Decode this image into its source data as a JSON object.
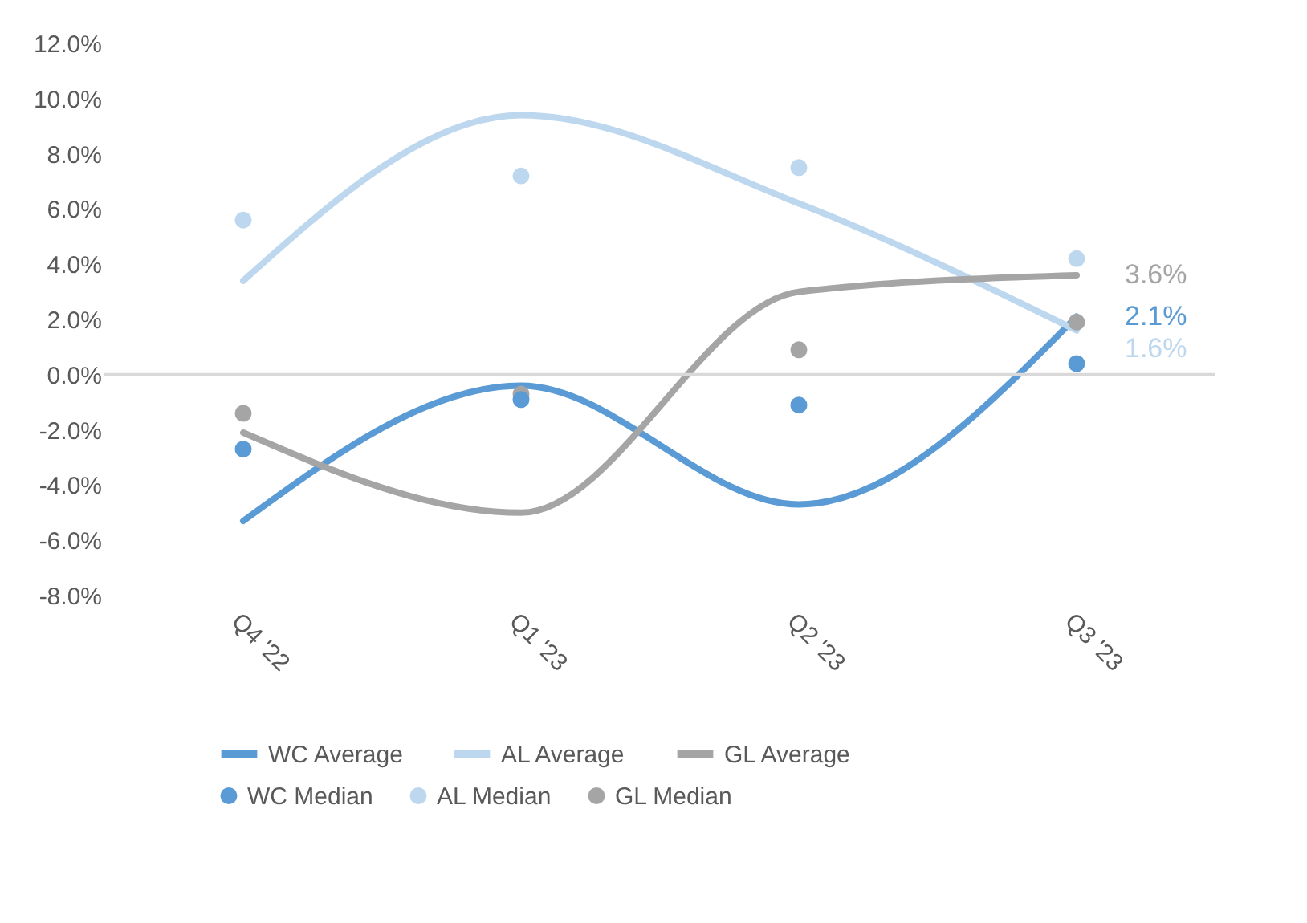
{
  "chart_data": {
    "type": "line",
    "categories": [
      "Q4 '22",
      "Q1 '23",
      "Q2 '23",
      "Q3 '23"
    ],
    "ylim": [
      -8,
      12
    ],
    "yticks": [
      {
        "value": 12,
        "label": "12.0%"
      },
      {
        "value": 10,
        "label": "10.0%"
      },
      {
        "value": 8,
        "label": "8.0%"
      },
      {
        "value": 6,
        "label": "6.0%"
      },
      {
        "value": 4,
        "label": "4.0%"
      },
      {
        "value": 2,
        "label": "2.0%"
      },
      {
        "value": 0,
        "label": "0.0%"
      },
      {
        "value": -2,
        "label": "-2.0%"
      },
      {
        "value": -4,
        "label": "-4.0%"
      },
      {
        "value": -6,
        "label": "-6.0%"
      },
      {
        "value": -8,
        "label": "-8.0%"
      }
    ],
    "legend": "bottom",
    "line_style": "solid",
    "ref_lines": [
      {
        "axis": "y",
        "value": 0,
        "color": "#d9d9d9"
      }
    ],
    "series": [
      {
        "name": "WC Average",
        "type": "line",
        "color": "#5b9bd5",
        "values": [
          -5.3,
          -0.4,
          -4.7,
          2.1
        ],
        "value_labels": [
          null,
          null,
          null,
          "2.1%"
        ]
      },
      {
        "name": "AL Average",
        "type": "line",
        "color": "#bdd7ee",
        "values": [
          3.4,
          9.4,
          6.2,
          1.6
        ],
        "value_labels": [
          null,
          null,
          null,
          "1.6%"
        ]
      },
      {
        "name": "GL Average",
        "type": "line",
        "color": "#a5a5a5",
        "values": [
          -2.1,
          -5.0,
          3.0,
          3.6
        ],
        "value_labels": [
          null,
          null,
          null,
          "3.6%"
        ]
      },
      {
        "name": "WC Median",
        "type": "scatter",
        "marker": "circle",
        "color": "#5b9bd5",
        "values": [
          -2.7,
          -0.9,
          -1.1,
          0.4
        ]
      },
      {
        "name": "AL Median",
        "type": "scatter",
        "marker": "circle",
        "color": "#bdd7ee",
        "values": [
          5.6,
          7.2,
          7.5,
          4.2
        ]
      },
      {
        "name": "GL Median",
        "type": "scatter",
        "marker": "circle",
        "color": "#a5a5a5",
        "values": [
          -1.4,
          -0.7,
          0.9,
          1.9
        ]
      }
    ]
  }
}
